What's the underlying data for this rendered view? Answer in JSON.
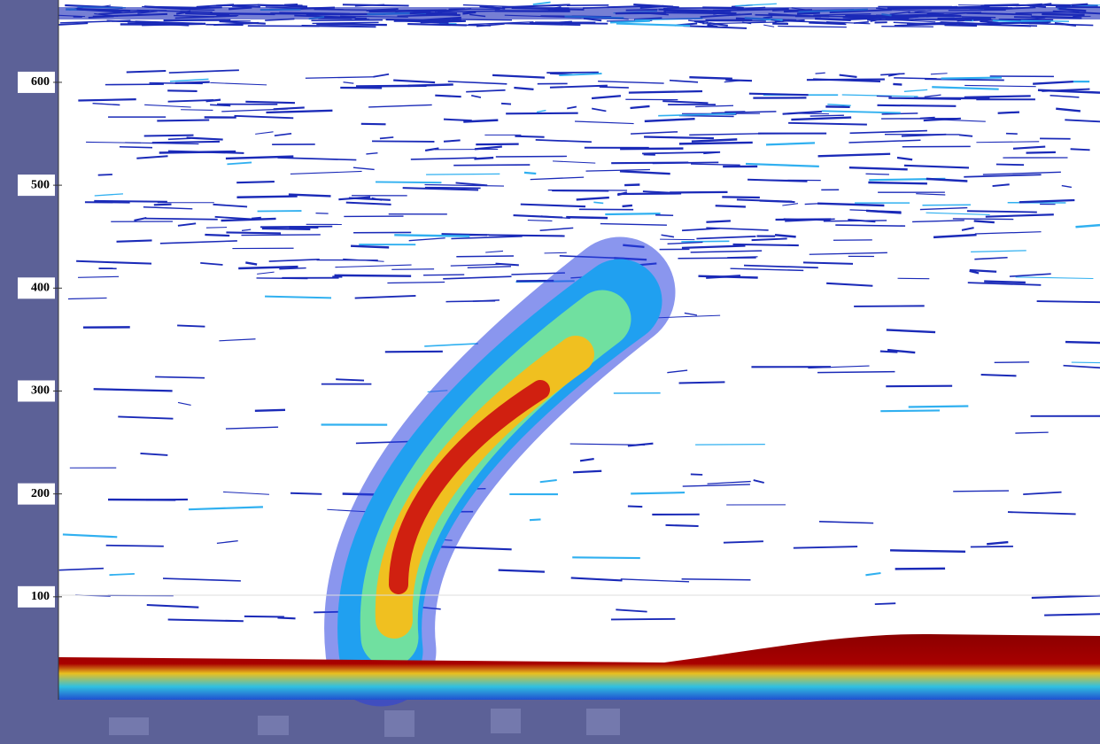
{
  "chart_data": {
    "type": "heatmap",
    "ylim": [
      0,
      680
    ],
    "yticks": [
      100,
      200,
      300,
      400,
      500,
      600
    ]
  }
}
